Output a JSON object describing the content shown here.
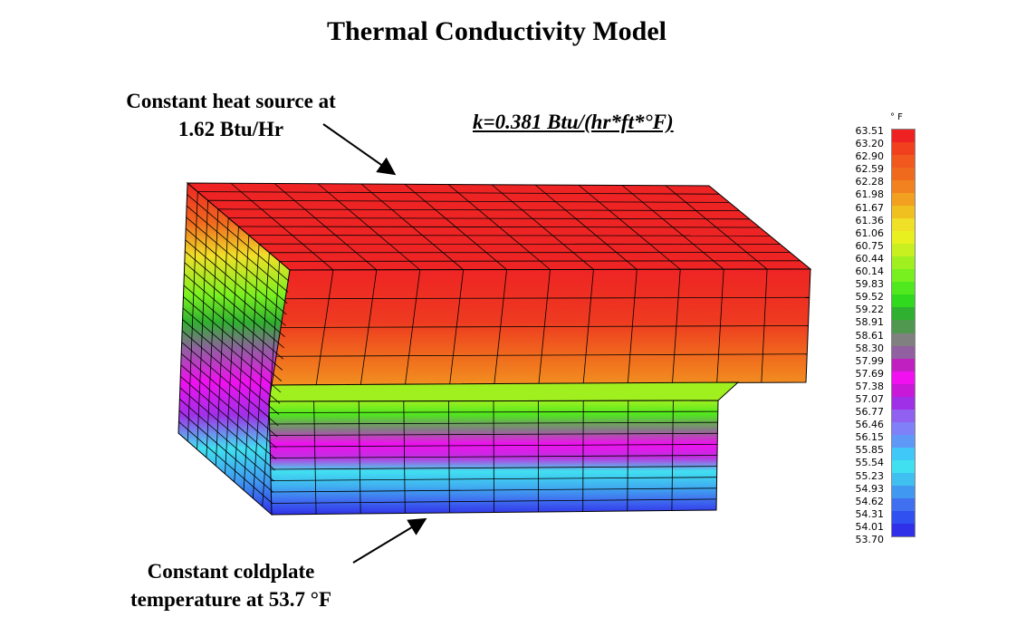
{
  "title": "Thermal Conductivity Model",
  "annotations": {
    "heat_source_line1": "Constant heat source at",
    "heat_source_line2": "1.62 Btu/Hr",
    "coldplate_line1": "Constant coldplate",
    "coldplate_line2": "temperature at 53.7 °F",
    "conductivity": "k=0.381 Btu/(hr*ft*°F)"
  },
  "legend": {
    "unit": "° F",
    "values": [
      "63.51",
      "63.20",
      "62.90",
      "62.59",
      "62.28",
      "61.98",
      "61.67",
      "61.36",
      "61.06",
      "60.75",
      "60.44",
      "60.14",
      "59.83",
      "59.52",
      "59.22",
      "58.91",
      "58.61",
      "58.30",
      "57.99",
      "57.69",
      "57.38",
      "57.07",
      "56.77",
      "56.46",
      "56.15",
      "55.85",
      "55.54",
      "55.23",
      "54.93",
      "54.62",
      "54.31",
      "54.01",
      "53.70"
    ],
    "colors": [
      "#ee2222",
      "#f0401e",
      "#f0581e",
      "#f06a1e",
      "#f28220",
      "#f2a020",
      "#f0c020",
      "#f0e028",
      "#e8f020",
      "#c8f020",
      "#a0f020",
      "#78f020",
      "#50e81e",
      "#30d81e",
      "#30b030",
      "#509850",
      "#808080",
      "#9060a0",
      "#c020c0",
      "#f010f0",
      "#c818d8",
      "#a030e8",
      "#9060f0",
      "#8080f8",
      "#6098f8",
      "#40c8f8",
      "#40e0f0",
      "#40c0f0",
      "#4098f0",
      "#4070f0",
      "#3050f0",
      "#3030e8"
    ]
  }
}
